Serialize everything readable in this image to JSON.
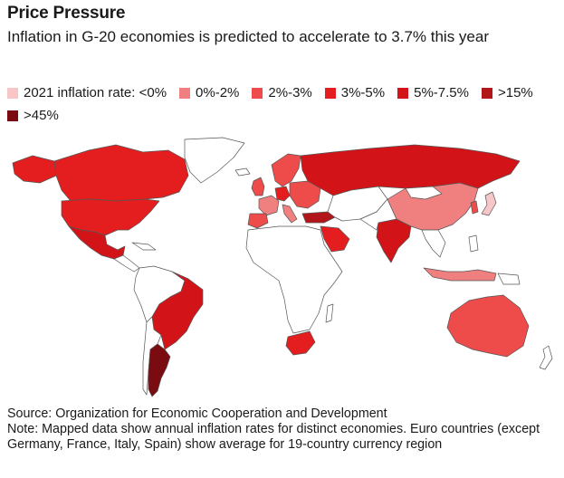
{
  "header": {
    "title": "Price Pressure",
    "subtitle": "Inflation in G-20 economies is predicted to accelerate to 3.7% this year"
  },
  "legend": [
    {
      "label": "2021 inflation rate: <0%",
      "color": "#f7c7c7"
    },
    {
      "label": "0%-2%",
      "color": "#f08080"
    },
    {
      "label": "2%-3%",
      "color": "#ee4b4b"
    },
    {
      "label": "3%-5%",
      "color": "#e41e1e"
    },
    {
      "label": "5%-7.5%",
      "color": "#d21419"
    },
    {
      "label": ">15%",
      "color": "#b2151a"
    },
    {
      "label": ">45%",
      "color": "#7a0b10"
    }
  ],
  "map": {
    "regions": [
      {
        "name": "Canada",
        "class": "3%-5%",
        "color": "#e41e1e"
      },
      {
        "name": "United States",
        "class": "3%-5%",
        "color": "#e41e1e"
      },
      {
        "name": "Mexico",
        "class": "5%-7.5%",
        "color": "#d21419"
      },
      {
        "name": "Brazil",
        "class": "5%-7.5%",
        "color": "#d21419"
      },
      {
        "name": "Argentina",
        "class": ">45%",
        "color": "#7a0b10"
      },
      {
        "name": "United Kingdom",
        "class": "2%-3%",
        "color": "#ee4b4b"
      },
      {
        "name": "Euro area",
        "class": "2%-3%",
        "color": "#ee4b4b"
      },
      {
        "name": "Germany",
        "class": "3%-5%",
        "color": "#e41e1e"
      },
      {
        "name": "France",
        "class": "0%-2%",
        "color": "#f08080"
      },
      {
        "name": "Italy",
        "class": "0%-2%",
        "color": "#f08080"
      },
      {
        "name": "Spain",
        "class": "2%-3%",
        "color": "#ee4b4b"
      },
      {
        "name": "Turkey",
        "class": ">15%",
        "color": "#b2151a"
      },
      {
        "name": "Russia",
        "class": "5%-7.5%",
        "color": "#d21419"
      },
      {
        "name": "Saudi Arabia",
        "class": "3%-5%",
        "color": "#e41e1e"
      },
      {
        "name": "India",
        "class": "5%-7.5%",
        "color": "#d21419"
      },
      {
        "name": "China",
        "class": "0%-2%",
        "color": "#f08080"
      },
      {
        "name": "Japan",
        "class": "<0%",
        "color": "#f7c7c7"
      },
      {
        "name": "South Korea",
        "class": "2%-3%",
        "color": "#ee4b4b"
      },
      {
        "name": "Indonesia",
        "class": "0%-2%",
        "color": "#f08080"
      },
      {
        "name": "Australia",
        "class": "2%-3%",
        "color": "#ee4b4b"
      },
      {
        "name": "South Africa",
        "class": "3%-5%",
        "color": "#e41e1e"
      }
    ],
    "colors": {
      "nodata": "#ffffff",
      "border": "#555555"
    }
  },
  "footer": {
    "source": "Source: Organization for Economic Cooperation and Development",
    "note": "Note: Mapped data show annual inflation rates for distinct economies. Euro countries (except Germany, France, Italy, Spain) show average for 19-country currency region"
  }
}
